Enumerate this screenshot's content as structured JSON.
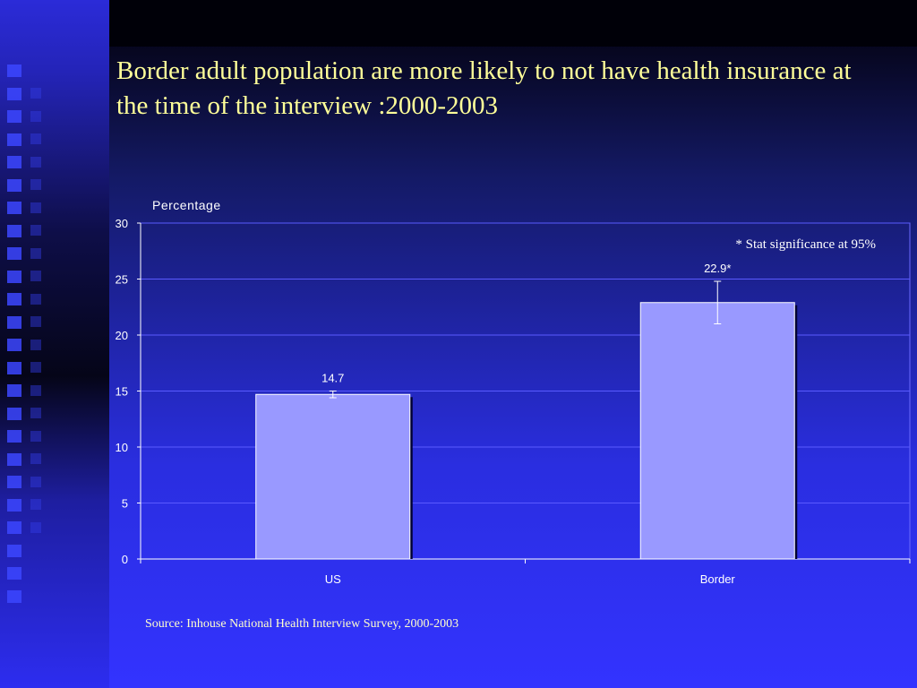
{
  "slide": {
    "title": "Border adult population are more likely to not have health insurance at the time of the interview :2000-2003",
    "source": "Source: Inhouse National Health Interview Survey, 2000-2003"
  },
  "colors": {
    "title": "#ffff99",
    "bar_fill": "#9999ff",
    "grid": "#5a5aff",
    "text": "#ffffff"
  },
  "chart_data": {
    "type": "bar",
    "title": "",
    "ylabel": "Percentage",
    "xlabel": "",
    "categories": [
      "US",
      "Border"
    ],
    "values": [
      14.7,
      22.9
    ],
    "data_labels": [
      "14.7",
      "22.9*"
    ],
    "error_bars": [
      [
        14.4,
        15.0
      ],
      [
        21.0,
        24.8
      ]
    ],
    "ylim": [
      0,
      30
    ],
    "yticks": [
      "0",
      "5",
      "10",
      "15",
      "20",
      "25",
      "30"
    ],
    "grid": true,
    "annotation": "* Stat significance at 95%"
  }
}
